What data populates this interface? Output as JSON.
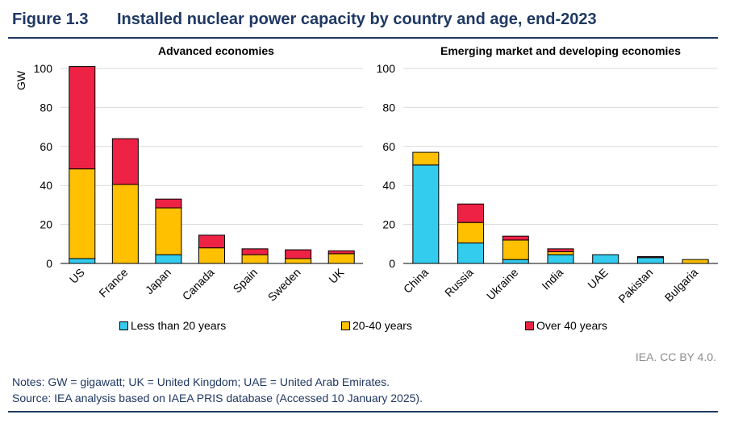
{
  "figure": {
    "number": "Figure 1.3",
    "title": "Installed nuclear power capacity by country and age, end-2023"
  },
  "legend": [
    {
      "label": "Less than 20 years",
      "color": "#33ccee"
    },
    {
      "label": "20-40 years",
      "color": "#ffc000"
    },
    {
      "label": "Over 40 years",
      "color": "#ee2244"
    }
  ],
  "credit": "IEA. CC BY 4.0.",
  "notes": "Notes: GW = gigawatt; UK = United Kingdom; UAE = United Arab Emirates.",
  "source": "Source: IEA analysis based on IAEA PRIS database (Accessed 10 January 2025).",
  "chart_data": [
    {
      "type": "bar",
      "stacked": true,
      "title": "Advanced economies",
      "ylabel": "GW",
      "ylim": [
        0,
        100
      ],
      "yticks": [
        0,
        20,
        40,
        60,
        80,
        100
      ],
      "grid": true,
      "categories": [
        "US",
        "France",
        "Japan",
        "Canada",
        "Spain",
        "Sweden",
        "UK"
      ],
      "series": [
        {
          "name": "Less than 20 years",
          "color": "#33ccee",
          "values": [
            2.5,
            0,
            4.5,
            0,
            0,
            0,
            0
          ]
        },
        {
          "name": "20-40 years",
          "color": "#ffc000",
          "values": [
            46,
            40.5,
            24,
            8,
            4.5,
            2.5,
            5
          ]
        },
        {
          "name": "Over 40 years",
          "color": "#ee2244",
          "values": [
            52.5,
            23.5,
            4.5,
            6.5,
            3,
            4.5,
            1.5
          ]
        }
      ]
    },
    {
      "type": "bar",
      "stacked": true,
      "title": "Emerging market and developing economies",
      "ylabel": "",
      "ylim": [
        0,
        100
      ],
      "yticks": [
        0,
        20,
        40,
        60,
        80,
        100
      ],
      "grid": true,
      "categories": [
        "China",
        "Russia",
        "Ukraine",
        "India",
        "UAE",
        "Pakistan",
        "Bulgaria"
      ],
      "series": [
        {
          "name": "Less than 20 years",
          "color": "#33ccee",
          "values": [
            50.5,
            10.5,
            2,
            4.5,
            4.5,
            3,
            0
          ]
        },
        {
          "name": "20-40 years",
          "color": "#ffc000",
          "values": [
            6.5,
            10.5,
            10,
            1.5,
            0,
            0,
            2
          ]
        },
        {
          "name": "Over 40 years",
          "color": "#ee2244",
          "values": [
            0,
            9.5,
            2,
            1.5,
            0,
            0.5,
            0
          ]
        }
      ]
    }
  ]
}
